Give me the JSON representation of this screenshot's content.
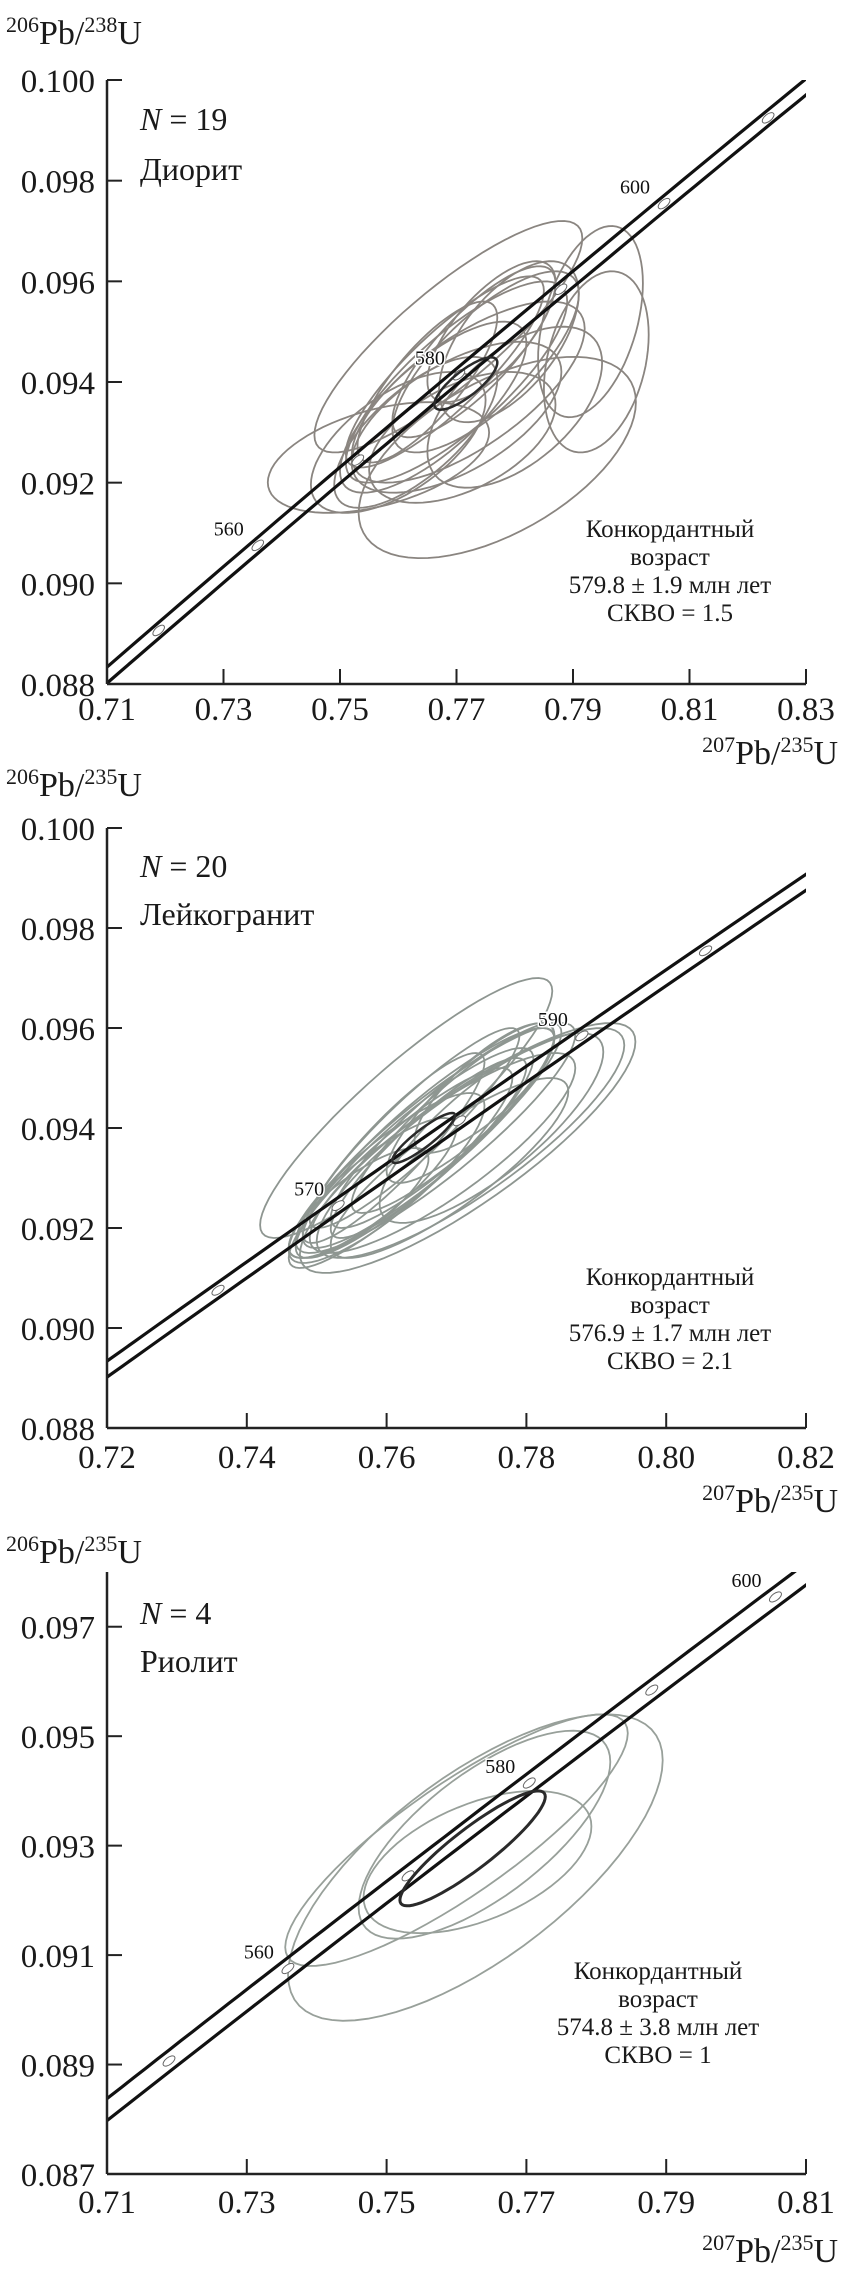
{
  "chart_data": [
    {
      "type": "scatter",
      "subtype": "concordia-error-ellipses",
      "ylabel": {
        "mass1": "206",
        "el1": "Pb",
        "mass2": "238",
        "el2": "U"
      },
      "xlabel": {
        "mass1": "207",
        "el1": "Pb",
        "mass2": "235",
        "el2": "U"
      },
      "xlim": [
        0.71,
        0.83
      ],
      "ylim": [
        0.088,
        0.1
      ],
      "xticks": [
        "0.71",
        "0.73",
        "0.75",
        "0.77",
        "0.79",
        "0.81",
        "0.83"
      ],
      "yticks": [
        "0.088",
        "0.090",
        "0.092",
        "0.094",
        "0.096",
        "0.098",
        "0.100"
      ],
      "n_symbol": "N",
      "n_value": "= 19",
      "rock": "Диорит",
      "stats": [
        "Конкордантный",
        "возраст",
        "579.8 ± 1.9 млн лет",
        "СКВО = 1.5"
      ],
      "age_labels": [
        "560",
        "580",
        "600"
      ],
      "ellipse_color": "#8a8580",
      "ellipse_format": [
        "x",
        "y",
        "sigma_x",
        "sigma_y",
        "rho"
      ],
      "ellipses": [
        [
          0.7686,
          0.0949,
          0.023,
          0.0023,
          0.85
        ],
        [
          0.777,
          0.0925,
          0.0238,
          0.002,
          0.55
        ],
        [
          0.7566,
          0.0925,
          0.019,
          0.0011,
          0.45
        ],
        [
          0.793,
          0.0952,
          0.009,
          0.0019,
          0.4
        ],
        [
          0.794,
          0.0944,
          0.009,
          0.0018,
          0.3
        ],
        [
          0.77,
          0.094,
          0.019,
          0.002,
          0.8
        ],
        [
          0.768,
          0.0942,
          0.017,
          0.0019,
          0.85
        ],
        [
          0.772,
          0.0938,
          0.02,
          0.0018,
          0.7
        ],
        [
          0.766,
          0.0935,
          0.016,
          0.0017,
          0.75
        ],
        [
          0.775,
          0.0944,
          0.016,
          0.0018,
          0.75
        ],
        [
          0.763,
          0.093,
          0.014,
          0.0015,
          0.7
        ],
        [
          0.779,
          0.0948,
          0.012,
          0.0016,
          0.6
        ],
        [
          0.77,
          0.0933,
          0.018,
          0.0015,
          0.6
        ],
        [
          0.76,
          0.0928,
          0.015,
          0.0014,
          0.6
        ],
        [
          0.773,
          0.0946,
          0.014,
          0.0017,
          0.8
        ],
        [
          0.78,
          0.0935,
          0.015,
          0.0016,
          0.55
        ],
        [
          0.765,
          0.094,
          0.012,
          0.0016,
          0.8
        ],
        [
          0.771,
          0.0929,
          0.016,
          0.0013,
          0.5
        ],
        [
          0.776,
          0.095,
          0.011,
          0.0014,
          0.7
        ]
      ],
      "concordia_ellipse": [
        0.7716,
        0.09397,
        0.0054,
        0.00052,
        0.8
      ],
      "concordia_age_range_ma": [
        540,
        620
      ]
    },
    {
      "type": "scatter",
      "subtype": "concordia-error-ellipses",
      "ylabel": {
        "mass1": "206",
        "el1": "Pb",
        "mass2": "235",
        "el2": "U"
      },
      "xlabel": {
        "mass1": "207",
        "el1": "Pb",
        "mass2": "235",
        "el2": "U"
      },
      "xlim": [
        0.72,
        0.82
      ],
      "ylim": [
        0.088,
        0.1
      ],
      "xticks": [
        "0.72",
        "0.74",
        "0.76",
        "0.78",
        "0.80",
        "0.82"
      ],
      "yticks": [
        "0.088",
        "0.090",
        "0.092",
        "0.094",
        "0.096",
        "0.098",
        "0.100"
      ],
      "n_symbol": "N",
      "n_value": "= 20",
      "rock": "Лейкогранит",
      "stats": [
        "Конкордантный",
        "возраст",
        "576.9 ± 1.7 млн лет",
        "СКВО = 2.1"
      ],
      "age_labels": [
        "570",
        "590"
      ],
      "ellipse_color": "#8e9691",
      "ellipse_format": [
        "x",
        "y",
        "sigma_x",
        "sigma_y",
        "rho"
      ],
      "ellipses": [
        [
          0.7628,
          0.0944,
          0.0209,
          0.0026,
          0.9
        ],
        [
          0.7716,
          0.0936,
          0.024,
          0.0025,
          0.85
        ],
        [
          0.772,
          0.0937,
          0.022,
          0.0023,
          0.85
        ],
        [
          0.766,
          0.0938,
          0.018,
          0.0022,
          0.9
        ],
        [
          0.764,
          0.0935,
          0.017,
          0.0021,
          0.9
        ],
        [
          0.768,
          0.094,
          0.016,
          0.002,
          0.9
        ],
        [
          0.762,
          0.0932,
          0.016,
          0.002,
          0.9
        ],
        [
          0.77,
          0.0942,
          0.015,
          0.0019,
          0.9
        ],
        [
          0.766,
          0.0936,
          0.014,
          0.0018,
          0.9
        ],
        [
          0.76,
          0.093,
          0.014,
          0.0017,
          0.85
        ],
        [
          0.768,
          0.0935,
          0.019,
          0.002,
          0.85
        ],
        [
          0.772,
          0.0945,
          0.012,
          0.0016,
          0.85
        ],
        [
          0.758,
          0.0928,
          0.012,
          0.0014,
          0.85
        ],
        [
          0.775,
          0.094,
          0.016,
          0.0019,
          0.8
        ],
        [
          0.764,
          0.094,
          0.015,
          0.002,
          0.92
        ],
        [
          0.769,
          0.0932,
          0.017,
          0.0018,
          0.85
        ],
        [
          0.761,
          0.0936,
          0.013,
          0.0019,
          0.9
        ],
        [
          0.774,
          0.0948,
          0.01,
          0.0013,
          0.8
        ],
        [
          0.756,
          0.0925,
          0.01,
          0.0011,
          0.8
        ],
        [
          0.767,
          0.0938,
          0.02,
          0.0023,
          0.9
        ]
      ],
      "concordia_ellipse": [
        0.7653,
        0.0938,
        0.0045,
        0.0005,
        0.9
      ],
      "concordia_age_range_ma": [
        540,
        620
      ]
    },
    {
      "type": "scatter",
      "subtype": "concordia-error-ellipses",
      "ylabel": {
        "mass1": "206",
        "el1": "Pb",
        "mass2": "235",
        "el2": "U"
      },
      "xlabel": {
        "mass1": "207",
        "el1": "Pb",
        "mass2": "235",
        "el2": "U"
      },
      "xlim": [
        0.71,
        0.81
      ],
      "ylim": [
        0.087,
        0.098
      ],
      "xticks": [
        "0.71",
        "0.73",
        "0.75",
        "0.77",
        "0.79",
        "0.81"
      ],
      "yticks": [
        "0.087",
        "0.089",
        "0.091",
        "0.093",
        "0.095",
        "0.097"
      ],
      "n_symbol": "N",
      "n_value": "= 4",
      "rock": "Риолит",
      "stats": [
        "Конкордантный",
        "возраст",
        "574.8 ± 3.8 млн лет",
        "СКВО = 1"
      ],
      "age_labels": [
        "560",
        "580",
        "600"
      ],
      "ellipse_color": "#98a09a",
      "ellipse_format": [
        "x",
        "y",
        "sigma_x",
        "sigma_y",
        "rho"
      ],
      "ellipses": [
        [
          0.76,
          0.0931,
          0.0245,
          0.0023,
          0.85
        ],
        [
          0.7627,
          0.0926,
          0.0268,
          0.0028,
          0.7
        ],
        [
          0.764,
          0.0932,
          0.018,
          0.0019,
          0.7
        ],
        [
          0.763,
          0.0927,
          0.0163,
          0.0013,
          0.5
        ]
      ],
      "concordia_ellipse": [
        0.7623,
        0.09295,
        0.0104,
        0.00105,
        0.9
      ],
      "concordia_age_range_ma": [
        540,
        610
      ]
    }
  ]
}
